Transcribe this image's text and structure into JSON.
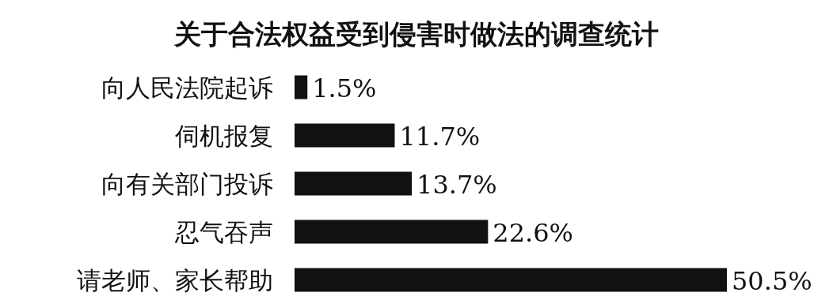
{
  "chart_data": {
    "type": "bar",
    "orientation": "horizontal",
    "title": "关于合法权益受到侵害时做法的调查统计",
    "categories": [
      "向人民法院起诉",
      "伺机报复",
      "向有关部门投诉",
      "忍气吞声",
      "请老师、家长帮助"
    ],
    "values": [
      1.5,
      11.7,
      13.7,
      22.6,
      50.5
    ],
    "value_labels": [
      "1.5%",
      "11.7%",
      "13.7%",
      "22.6%",
      "50.5%"
    ],
    "color": "#111111"
  }
}
